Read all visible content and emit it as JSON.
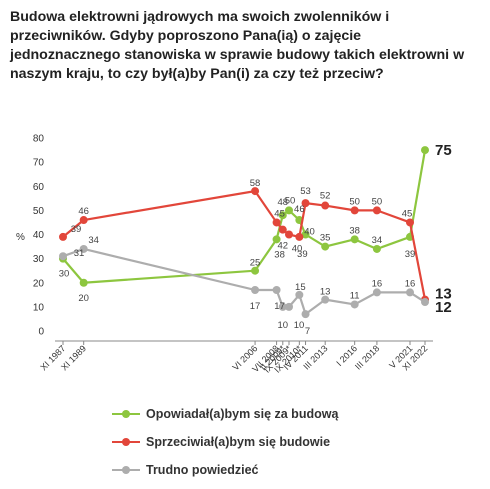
{
  "title": "Budowa elektrowni jądrowych ma swoich zwolenników i przeciwników. Gdyby poproszono Pana(ią) o zajęcie jednoznacznego stanowiska w sprawie budowy takich elektrowni w naszym kraju, to czy był(a)by Pan(i) za czy też przeciw?",
  "chart_data": {
    "type": "line",
    "ylabel": "%",
    "ylim": [
      0,
      80
    ],
    "yticks": [
      0,
      10,
      20,
      30,
      40,
      50,
      60,
      70,
      80
    ],
    "categories": [
      "XI 1987",
      "XI 1989",
      "VI 2006",
      "VII 2008",
      "II 2009*",
      "IX 2009*",
      "IX 2010*",
      "IV 2011",
      "III 2013",
      "I 2016",
      "III 2018",
      "V 2021",
      "XI 2022"
    ],
    "x_years": [
      1987.85,
      1989.85,
      2006.42,
      2008.5,
      2009.1,
      2009.7,
      2010.7,
      2011.3,
      2013.2,
      2016.05,
      2018.2,
      2021.4,
      2022.85
    ],
    "series": [
      {
        "name": "Opowiadał(a)bym się za budową",
        "color": "#8dc63f",
        "values": [
          30,
          20,
          25,
          38,
          48,
          50,
          46,
          40,
          35,
          38,
          34,
          39,
          75
        ]
      },
      {
        "name": "Sprzeciwiał(a)bym się budowie",
        "color": "#e2463a",
        "values": [
          39,
          46,
          58,
          45,
          42,
          40,
          39,
          53,
          52,
          50,
          50,
          45,
          13
        ]
      },
      {
        "name": "Trudno powiedzieć",
        "color": "#adadad",
        "values": [
          31,
          34,
          17,
          17,
          10,
          10,
          15,
          7,
          13,
          11,
          16,
          16,
          12
        ]
      }
    ],
    "grid": false
  }
}
